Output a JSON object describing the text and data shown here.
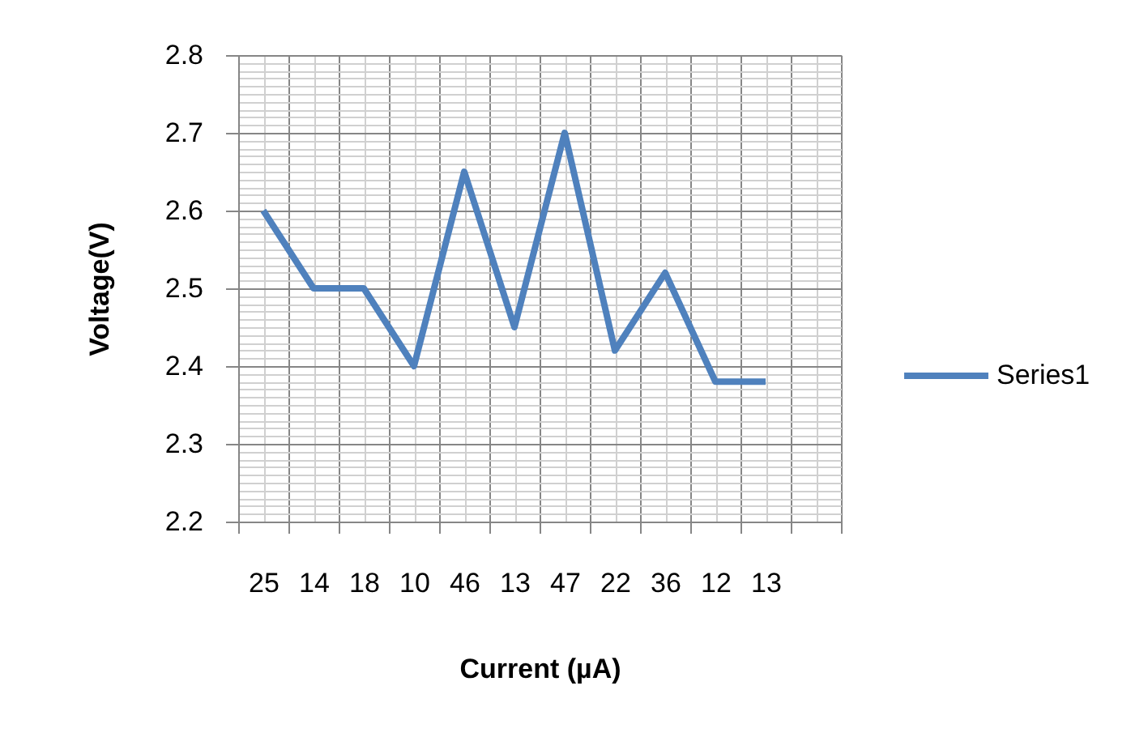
{
  "chart_data": {
    "type": "line",
    "xlabel": "Current (µA)",
    "ylabel": "Voltage(V)",
    "categories": [
      "25",
      "14",
      "18",
      "10",
      "46",
      "13",
      "47",
      "22",
      "36",
      "12",
      "13",
      null
    ],
    "series": [
      {
        "name": "Series1",
        "color": "#4f81bd",
        "values": [
          2.6,
          2.5,
          2.5,
          2.4,
          2.65,
          2.45,
          2.7,
          2.42,
          2.52,
          2.38,
          2.38,
          null
        ]
      }
    ],
    "ylim": [
      2.2,
      2.8
    ],
    "yticks": [
      2.2,
      2.3,
      2.4,
      2.5,
      2.6,
      2.7,
      2.8
    ],
    "grid": true,
    "legend": "right",
    "line_style": "solid"
  }
}
